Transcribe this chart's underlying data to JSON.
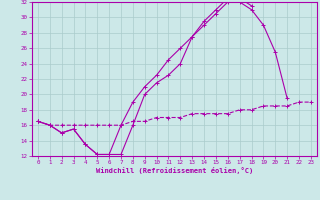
{
  "background_color": "#cce8e8",
  "grid_color": "#aacccc",
  "line_color": "#aa00aa",
  "xlim": [
    -0.5,
    23.5
  ],
  "ylim": [
    12,
    32
  ],
  "xticks": [
    0,
    1,
    2,
    3,
    4,
    5,
    6,
    7,
    8,
    9,
    10,
    11,
    12,
    13,
    14,
    15,
    16,
    17,
    18,
    19,
    20,
    21,
    22,
    23
  ],
  "yticks": [
    12,
    14,
    16,
    18,
    20,
    22,
    24,
    26,
    28,
    30,
    32
  ],
  "xlabel": "Windchill (Refroidissement éolien,°C)",
  "line1_x": [
    0,
    1,
    2,
    3,
    4,
    5,
    6,
    7,
    8,
    9,
    10,
    11,
    12,
    13,
    14,
    15,
    16,
    17,
    18,
    19,
    20,
    21
  ],
  "line1_y": [
    16.5,
    16.0,
    15.0,
    15.5,
    13.5,
    12.2,
    12.2,
    12.2,
    16.0,
    20.0,
    21.5,
    22.5,
    24.0,
    27.5,
    29.0,
    30.5,
    32.0,
    32.0,
    31.0,
    29.0,
    25.5,
    19.5
  ],
  "line2_x": [
    0,
    1,
    2,
    3,
    4,
    5,
    6,
    7,
    8,
    9,
    10,
    11,
    12,
    13,
    14,
    15,
    16,
    17,
    18
  ],
  "line2_y": [
    16.5,
    16.0,
    15.0,
    15.5,
    13.5,
    12.2,
    12.2,
    16.0,
    19.0,
    21.0,
    22.5,
    24.5,
    26.0,
    27.5,
    29.5,
    31.0,
    32.5,
    32.5,
    31.5
  ],
  "line3_x": [
    0,
    1,
    2,
    3,
    4,
    5,
    6,
    7,
    8,
    9,
    10,
    11,
    12,
    13,
    14,
    15,
    16,
    17,
    18,
    19,
    20,
    21,
    22,
    23
  ],
  "line3_y": [
    16.5,
    16.0,
    16.0,
    16.0,
    16.0,
    16.0,
    16.0,
    16.0,
    16.5,
    16.5,
    17.0,
    17.0,
    17.0,
    17.5,
    17.5,
    17.5,
    17.5,
    18.0,
    18.0,
    18.5,
    18.5,
    18.5,
    19.0,
    19.0
  ]
}
